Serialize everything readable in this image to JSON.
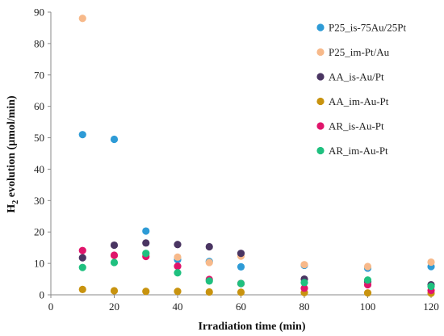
{
  "chart_data": {
    "type": "scatter",
    "title": "",
    "xlabel": "Irradiation time (min)",
    "ylabel": {
      "pre": "H",
      "sub": "2",
      "post": " evolution (µmol/min)"
    },
    "xlim": [
      0,
      120
    ],
    "ylim": [
      0,
      90
    ],
    "xticks": [
      0,
      20,
      40,
      60,
      80,
      100,
      120
    ],
    "yticks": [
      0,
      10,
      20,
      30,
      40,
      50,
      60,
      70,
      80,
      90
    ],
    "grid": false,
    "legend_position": "top-right",
    "series": [
      {
        "name": "P25_is-75Au/25Pt",
        "color": "#2e9bd6",
        "points": [
          [
            10,
            51
          ],
          [
            20,
            49.5
          ],
          [
            30,
            20.3
          ],
          [
            40,
            11.2
          ],
          [
            50,
            10.6
          ],
          [
            60,
            8.9
          ],
          [
            80,
            9.4
          ],
          [
            100,
            8.5
          ],
          [
            120,
            9
          ]
        ]
      },
      {
        "name": "P25_im-Pt/Au",
        "color": "#f7b98a",
        "points": [
          [
            10,
            88
          ],
          [
            20,
            12.5
          ],
          [
            30,
            12.7
          ],
          [
            40,
            12
          ],
          [
            50,
            10.3
          ],
          [
            60,
            12.3
          ],
          [
            80,
            9.6
          ],
          [
            100,
            9
          ],
          [
            120,
            10.4
          ]
        ]
      },
      {
        "name": "AA_is-Au/Pt",
        "color": "#4a3562",
        "points": [
          [
            10,
            11.8
          ],
          [
            20,
            15.8
          ],
          [
            30,
            16.5
          ],
          [
            40,
            16
          ],
          [
            50,
            15.3
          ],
          [
            60,
            13.2
          ],
          [
            80,
            5
          ],
          [
            100,
            4.2
          ],
          [
            120,
            3.2
          ]
        ]
      },
      {
        "name": "AA_im-Au-Pt",
        "color": "#c8930f",
        "points": [
          [
            10,
            1.7
          ],
          [
            20,
            1.3
          ],
          [
            30,
            1.1
          ],
          [
            40,
            1.1
          ],
          [
            50,
            0.9
          ],
          [
            60,
            0.8
          ],
          [
            80,
            0.7
          ],
          [
            100,
            0.6
          ],
          [
            120,
            0.5
          ]
        ]
      },
      {
        "name": "AR_is-Au-Pt",
        "color": "#e0156b",
        "points": [
          [
            10,
            14.1
          ],
          [
            20,
            12.6
          ],
          [
            30,
            12.2
          ],
          [
            40,
            9.1
          ],
          [
            50,
            4.9
          ],
          [
            60,
            3.6
          ],
          [
            80,
            2.1
          ],
          [
            100,
            3.2
          ],
          [
            120,
            1.4
          ]
        ]
      },
      {
        "name": "AR_im-Au-Pt",
        "color": "#1fc07f",
        "points": [
          [
            10,
            8.7
          ],
          [
            20,
            10.3
          ],
          [
            30,
            13.2
          ],
          [
            40,
            7
          ],
          [
            50,
            4.4
          ],
          [
            60,
            3.6
          ],
          [
            80,
            3.9
          ],
          [
            100,
            4.7
          ],
          [
            120,
            2.7
          ]
        ]
      }
    ]
  }
}
